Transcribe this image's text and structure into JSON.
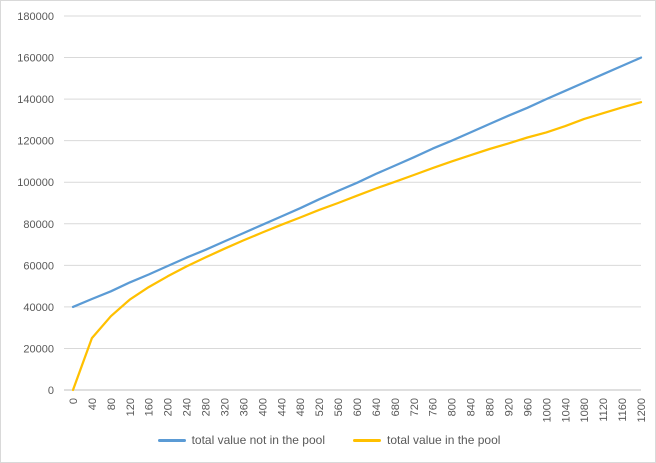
{
  "chart_data": {
    "type": "line",
    "title": "",
    "xlabel": "",
    "ylabel": "",
    "ylim": [
      0,
      180000
    ],
    "yticks": [
      0,
      20000,
      40000,
      60000,
      80000,
      100000,
      120000,
      140000,
      160000,
      180000
    ],
    "x": [
      0,
      40,
      80,
      120,
      160,
      200,
      240,
      280,
      320,
      360,
      400,
      440,
      480,
      520,
      560,
      600,
      640,
      680,
      720,
      760,
      800,
      840,
      880,
      920,
      960,
      1000,
      1040,
      1080,
      1120,
      1160,
      1200
    ],
    "grid": "horizontal",
    "legend_position": "bottom",
    "series": [
      {
        "name": "total value not in the pool",
        "color": "#5b9bd5",
        "values": [
          40000,
          43800,
          47500,
          51800,
          55600,
          59700,
          63700,
          67500,
          71500,
          75500,
          79500,
          83500,
          87500,
          91800,
          95800,
          99700,
          104000,
          108000,
          112000,
          116200,
          120000,
          124000,
          128000,
          132000,
          135800,
          140000,
          144000,
          148000,
          152000,
          156000,
          160000
        ]
      },
      {
        "name": "total value in the pool",
        "color": "#ffc000",
        "values": [
          0,
          25000,
          35500,
          43500,
          49500,
          54700,
          59500,
          63800,
          68000,
          72000,
          75800,
          79500,
          83000,
          86700,
          90000,
          93500,
          97000,
          100200,
          103500,
          106800,
          110000,
          113000,
          116000,
          118700,
          121500,
          124000,
          127000,
          130500,
          133200,
          136000,
          138500
        ]
      }
    ]
  }
}
